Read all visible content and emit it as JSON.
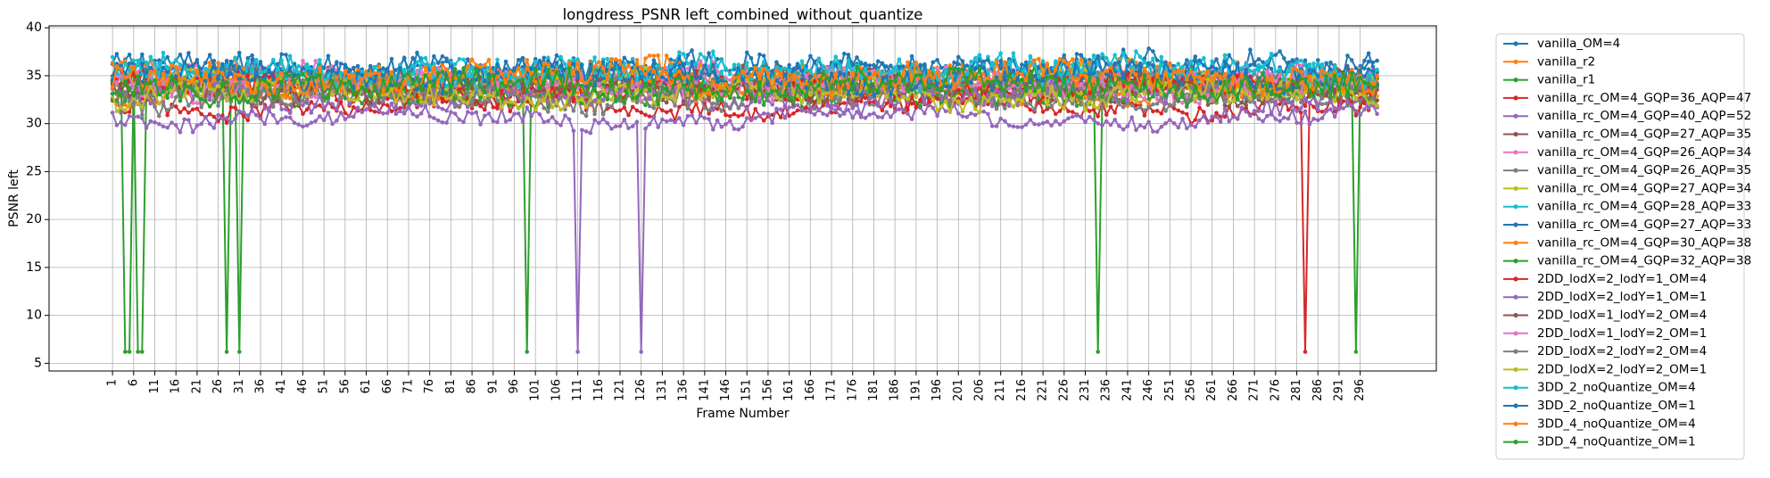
{
  "chart_data": {
    "type": "line",
    "title": "longdress_PSNR left_combined_without_quantize",
    "xlabel": "Frame Number",
    "ylabel": "PSNR left",
    "xlim": [
      1,
      300
    ],
    "ylim": [
      4.2,
      40.2
    ],
    "x_ticks": [
      1,
      6,
      11,
      16,
      21,
      26,
      31,
      36,
      41,
      46,
      51,
      56,
      61,
      66,
      71,
      76,
      81,
      86,
      91,
      96,
      101,
      106,
      111,
      116,
      121,
      126,
      131,
      136,
      141,
      146,
      151,
      156,
      161,
      166,
      171,
      176,
      181,
      186,
      191,
      196,
      201,
      206,
      211,
      216,
      221,
      226,
      231,
      236,
      241,
      246,
      251,
      256,
      261,
      266,
      271,
      276,
      281,
      286,
      291,
      296
    ],
    "y_ticks": [
      5,
      10,
      15,
      20,
      25,
      30,
      35,
      40
    ],
    "grid": true,
    "legend_position": "outside-right",
    "series_note": "values are per-frame PSNR estimates; typical band and drop frames read off the plot",
    "series": [
      {
        "name": "vanilla_OM=4",
        "color": "#1f77b4",
        "level": 35.8,
        "amp": 1.3,
        "drops": []
      },
      {
        "name": "vanilla_r2",
        "color": "#ff7f0e",
        "level": 35.0,
        "amp": 1.3,
        "drops": []
      },
      {
        "name": "vanilla_r1",
        "color": "#2ca02c",
        "level": 33.8,
        "amp": 1.4,
        "drops": [
          {
            "frame": 4,
            "value": 6.2
          },
          {
            "frame": 5,
            "value": 6.2
          },
          {
            "frame": 7,
            "value": 6.2
          },
          {
            "frame": 8,
            "value": 6.2
          },
          {
            "frame": 28,
            "value": 6.2
          },
          {
            "frame": 31,
            "value": 6.2
          },
          {
            "frame": 99,
            "value": 6.2
          },
          {
            "frame": 234,
            "value": 6.2
          },
          {
            "frame": 295,
            "value": 6.2
          }
        ]
      },
      {
        "name": "vanilla_rc_OM=4_GQP=36_AQP=47",
        "color": "#d62728",
        "level": 31.8,
        "amp": 0.9,
        "drops": [
          {
            "frame": 283,
            "value": 6.2
          }
        ]
      },
      {
        "name": "vanilla_rc_OM=4_GQP=40_AQP=52",
        "color": "#9467bd",
        "level": 30.6,
        "amp": 0.8,
        "drops": [
          {
            "frame": 111,
            "value": 6.2
          },
          {
            "frame": 126,
            "value": 6.2
          }
        ]
      },
      {
        "name": "vanilla_rc_OM=4_GQP=27_AQP=35",
        "color": "#8c564b",
        "level": 34.2,
        "amp": 1.2,
        "drops": []
      },
      {
        "name": "vanilla_rc_OM=4_GQP=26_AQP=34",
        "color": "#e377c2",
        "level": 34.6,
        "amp": 1.3,
        "drops": []
      },
      {
        "name": "vanilla_rc_OM=4_GQP=26_AQP=35",
        "color": "#7f7f7f",
        "level": 34.0,
        "amp": 1.2,
        "drops": []
      },
      {
        "name": "vanilla_rc_OM=4_GQP=27_AQP=34",
        "color": "#bcbd22",
        "level": 34.3,
        "amp": 1.2,
        "drops": []
      },
      {
        "name": "vanilla_rc_OM=4_GQP=28_AQP=33",
        "color": "#17becf",
        "level": 35.2,
        "amp": 1.3,
        "drops": []
      },
      {
        "name": "vanilla_rc_OM=4_GQP=27_AQP=33",
        "color": "#1f77b4",
        "level": 35.4,
        "amp": 1.3,
        "drops": []
      },
      {
        "name": "vanilla_rc_OM=4_GQP=30_AQP=38",
        "color": "#ff7f0e",
        "level": 33.6,
        "amp": 1.1,
        "drops": []
      },
      {
        "name": "vanilla_rc_OM=4_GQP=32_AQP=38",
        "color": "#2ca02c",
        "level": 33.2,
        "amp": 1.1,
        "drops": []
      },
      {
        "name": "2DD_lodX=2_lodY=1_OM=4",
        "color": "#d62728",
        "level": 33.5,
        "amp": 1.2,
        "drops": []
      },
      {
        "name": "2DD_lodX=2_lodY=1_OM=1",
        "color": "#9467bd",
        "level": 32.8,
        "amp": 1.1,
        "drops": []
      },
      {
        "name": "2DD_lodX=1_lodY=2_OM=4",
        "color": "#8c564b",
        "level": 33.9,
        "amp": 1.2,
        "drops": []
      },
      {
        "name": "2DD_lodX=1_lodY=2_OM=1",
        "color": "#e377c2",
        "level": 34.1,
        "amp": 1.2,
        "drops": []
      },
      {
        "name": "2DD_lodX=2_lodY=2_OM=4",
        "color": "#7f7f7f",
        "level": 32.9,
        "amp": 1.2,
        "drops": []
      },
      {
        "name": "2DD_lodX=2_lodY=2_OM=1",
        "color": "#bcbd22",
        "level": 33.1,
        "amp": 1.2,
        "drops": []
      },
      {
        "name": "3DD_2_noQuantize_OM=4",
        "color": "#17becf",
        "level": 35.5,
        "amp": 1.3,
        "drops": []
      },
      {
        "name": "3DD_2_noQuantize_OM=1",
        "color": "#1f77b4",
        "level": 35.0,
        "amp": 1.3,
        "drops": []
      },
      {
        "name": "3DD_4_noQuantize_OM=4",
        "color": "#ff7f0e",
        "level": 34.8,
        "amp": 1.3,
        "drops": []
      },
      {
        "name": "3DD_4_noQuantize_OM=1",
        "color": "#2ca02c",
        "level": 34.0,
        "amp": 1.3,
        "drops": []
      }
    ]
  }
}
